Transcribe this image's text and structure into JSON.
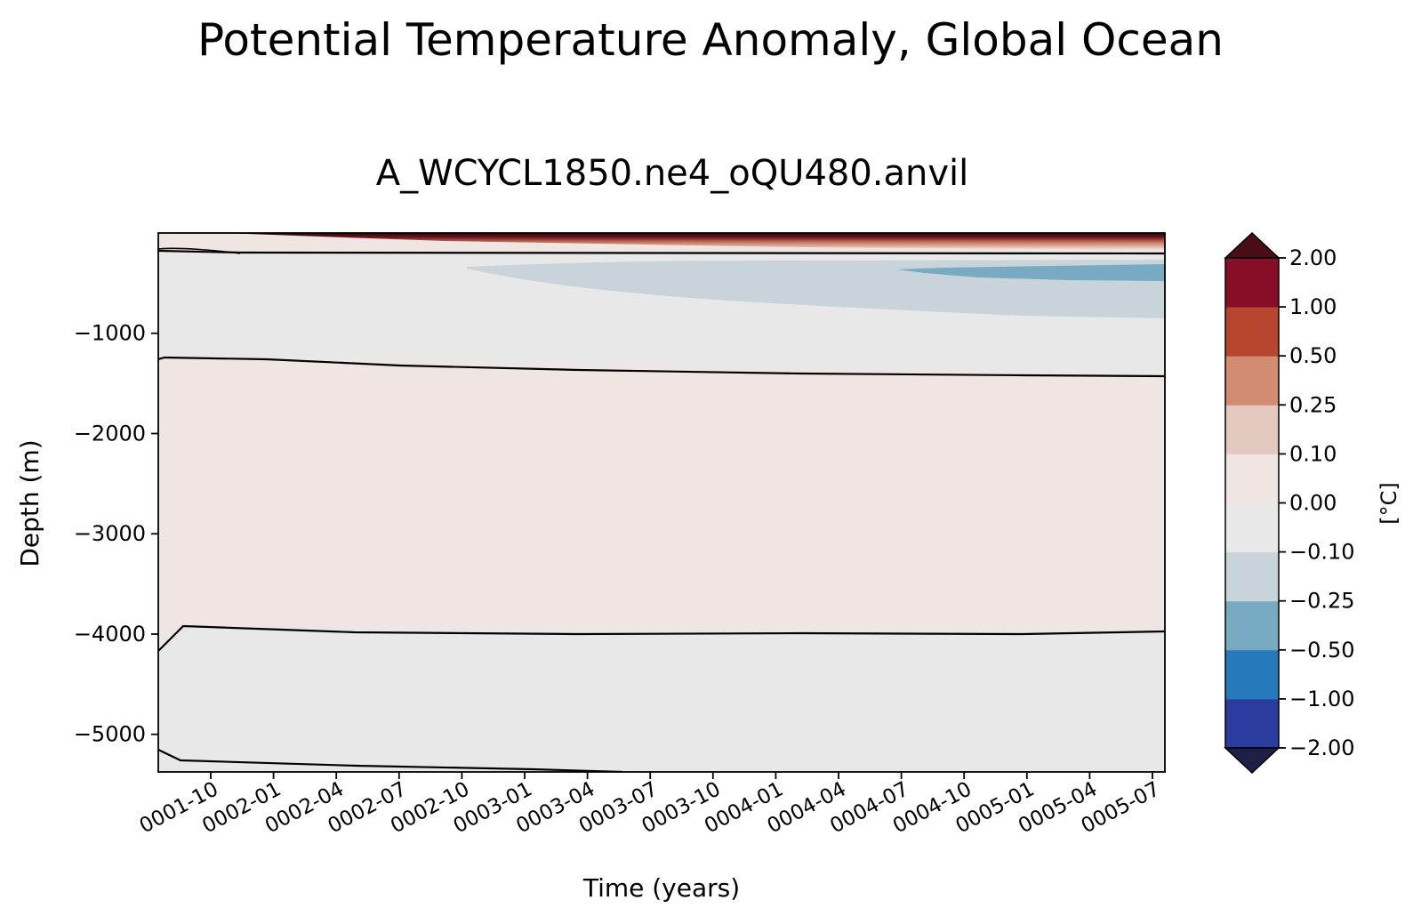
{
  "chart_data": {
    "type": "heatmap",
    "title": "Potential Temperature Anomaly, Global Ocean",
    "subtitle": "A_WCYCL1850.ne4_oQU480.anvil",
    "xlabel": "Time (years)",
    "ylabel": "Depth (m)",
    "x_ticks": [
      "0001-10",
      "0002-01",
      "0002-04",
      "0002-07",
      "0002-10",
      "0003-01",
      "0003-04",
      "0003-07",
      "0003-10",
      "0004-01",
      "0004-04",
      "0004-07",
      "0004-10",
      "0005-01",
      "0005-04",
      "0005-07"
    ],
    "x_range": [
      0.58,
      4.6
    ],
    "y_ticks": [
      -1000,
      -2000,
      -3000,
      -4000,
      -5000
    ],
    "y_tick_labels": [
      "−1000",
      "−2000",
      "−3000",
      "−4000",
      "−5000"
    ],
    "ylim": [
      -5375,
      0
    ],
    "colorbar": {
      "label": "[°C]",
      "levels": [
        -2.0,
        -1.0,
        -0.5,
        -0.25,
        -0.1,
        0.0,
        0.1,
        0.25,
        0.5,
        1.0,
        2.0
      ],
      "tick_labels": [
        "−2.00",
        "−1.00",
        "−0.50",
        "−0.25",
        "−0.10",
        "0.00",
        "0.10",
        "0.25",
        "0.50",
        "1.00",
        "2.00"
      ],
      "colors": [
        "#2a3d9e",
        "#2679bb",
        "#78abc2",
        "#c9d4da",
        "#e9e8e8",
        "#efe5e3",
        "#e4c9c0",
        "#d28c72",
        "#b7462f",
        "#860f27"
      ],
      "extend_low_color": "#1e1f46",
      "extend_high_color": "#4a0c17"
    },
    "anomaly_regions": [
      {
        "level": "-0.25 to -0.10",
        "x_start": 2.0,
        "x_end": 4.6,
        "depth_top": -250,
        "depth_bottom": -850
      },
      {
        "level": "-0.50 to -0.25",
        "x_start": 3.7,
        "x_end": 4.6,
        "depth_top": -300,
        "depth_bottom": -450
      },
      {
        "level": "> 0.10 (surface warming)",
        "x_start": 0.58,
        "x_end": 4.6,
        "depth_top": 0,
        "depth_bottom": -150
      }
    ],
    "zero_contours": [
      {
        "x": [
          0.58,
          0.6,
          4.6
        ],
        "depth": [
          -1260,
          -1230,
          -1420
        ]
      },
      {
        "x": [
          0.58,
          0.68,
          1.5,
          2.4,
          4.6
        ],
        "depth": [
          -4130,
          -3900,
          -3960,
          -3970,
          -3950
        ]
      },
      {
        "x": [
          0.58,
          0.67,
          1.2,
          1.8,
          2.1
        ],
        "depth": [
          -5130,
          -5230,
          -5290,
          -5340,
          -5375
        ]
      },
      {
        "x": [
          0.58,
          0.9,
          4.6
        ],
        "depth": [
          -100,
          -110,
          -115
        ]
      }
    ]
  }
}
